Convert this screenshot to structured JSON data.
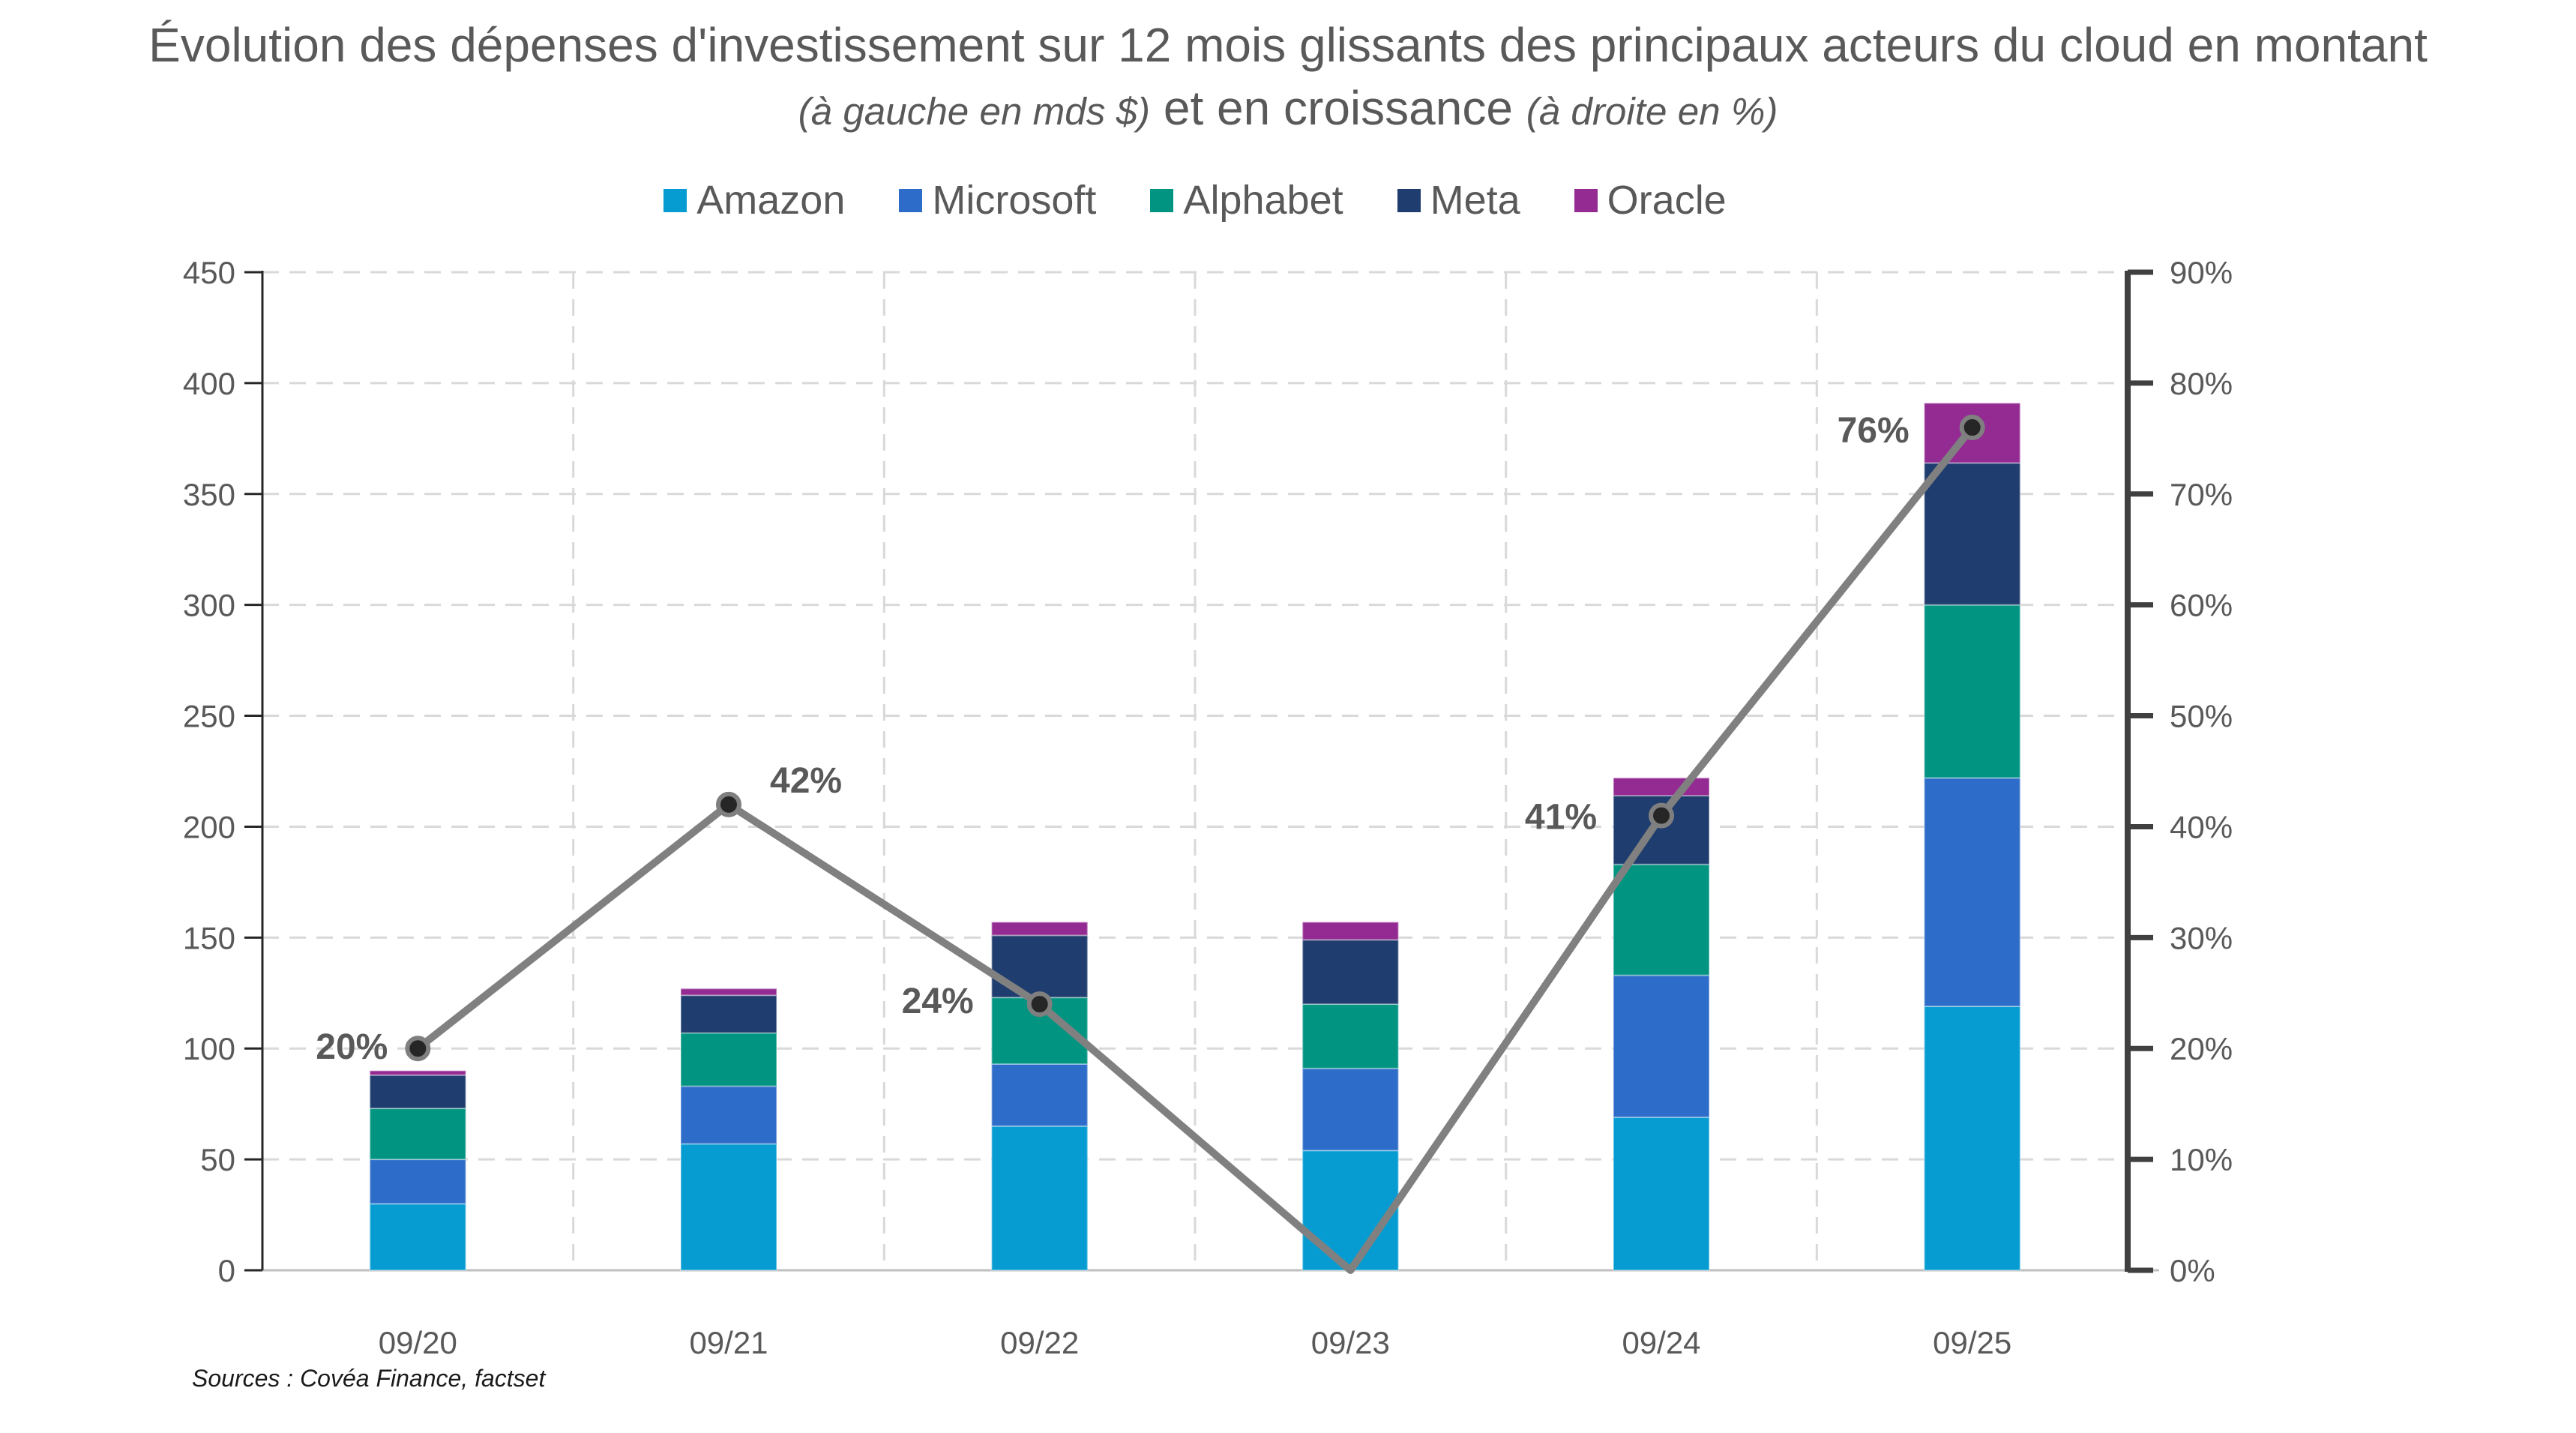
{
  "title": {
    "part1": "Évolution des dépenses d'investissement sur 12 mois glissants des principaux acteurs du cloud en montant ",
    "part2": "(à gauche en mds $)",
    "part3": " et en croissance ",
    "part4": "(à droite en %)"
  },
  "source": "Sources : Covéa Finance, factset",
  "chart_data": {
    "type": "bar",
    "subtype": "stacked-column-with-line",
    "categories": [
      "09/20",
      "09/21",
      "09/22",
      "09/23",
      "09/24",
      "09/25"
    ],
    "series": [
      {
        "name": "Amazon",
        "color": "#069CD1",
        "values": [
          30,
          57,
          65,
          54,
          69,
          119
        ]
      },
      {
        "name": "Microsoft",
        "color": "#2D6CC8",
        "values": [
          20,
          26,
          28,
          37,
          64,
          103
        ]
      },
      {
        "name": "Alphabet",
        "color": "#009481",
        "values": [
          23,
          24,
          30,
          29,
          50,
          78
        ]
      },
      {
        "name": "Meta",
        "color": "#1F3D6E",
        "values": [
          15,
          17,
          28,
          29,
          31,
          64
        ]
      },
      {
        "name": "Oracle",
        "color": "#932B92",
        "values": [
          2,
          3,
          6,
          8,
          8,
          27
        ]
      }
    ],
    "totals": [
      90,
      127,
      157,
      157,
      222,
      391
    ],
    "line": {
      "name": "Croissance",
      "values_pct": [
        20,
        42,
        24,
        0,
        41,
        76
      ],
      "labels": [
        "20%",
        "42%",
        "24%",
        null,
        "41%",
        "76%"
      ],
      "show_marker": [
        true,
        true,
        true,
        false,
        true,
        true
      ],
      "color": "#808080",
      "marker_fill": "#262626",
      "marker_ring": "#7F7F7F"
    },
    "left_axis": {
      "min": 0,
      "max": 450,
      "step": 50,
      "tick_labels": [
        "0",
        "50",
        "100",
        "150",
        "200",
        "250",
        "300",
        "350",
        "400",
        "450"
      ]
    },
    "right_axis": {
      "min": 0,
      "max": 90,
      "step": 10,
      "tick_labels": [
        "0%",
        "10%",
        "20%",
        "30%",
        "40%",
        "50%",
        "60%",
        "70%",
        "80%",
        "90%"
      ]
    },
    "grid": {
      "horizontal": true,
      "vertical": true,
      "style": "dashed",
      "color": "#D9D9D9"
    },
    "axis_colors": {
      "left_line": "#262626",
      "right_line": "#404040",
      "baseline": "#BFBFBF",
      "tick_text": "#595959"
    },
    "legend_position": "top",
    "data_label_color": "#595959"
  }
}
